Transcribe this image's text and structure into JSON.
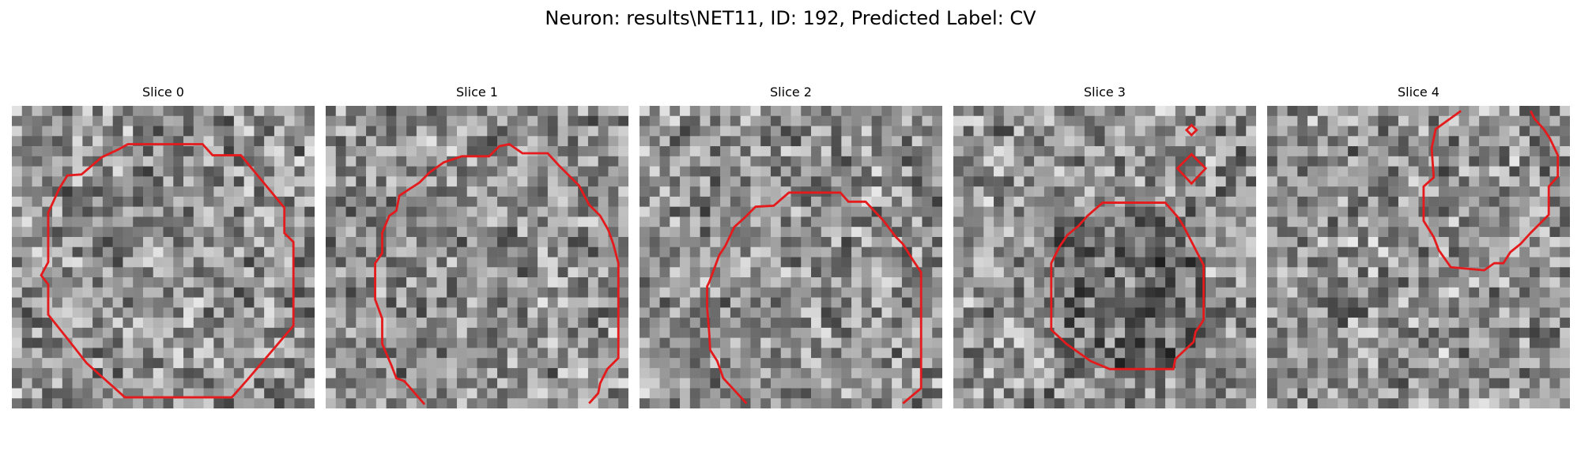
{
  "figure": {
    "title": "Neuron: results\\NET11, ID: 192, Predicted Label: CV",
    "outline_color": "#e41a1c",
    "colormap": "grayscale"
  },
  "panels": [
    {
      "title": "Slice 0"
    },
    {
      "title": "Slice 1"
    },
    {
      "title": "Slice 2"
    },
    {
      "title": "Slice 3"
    },
    {
      "title": "Slice 4"
    }
  ]
}
